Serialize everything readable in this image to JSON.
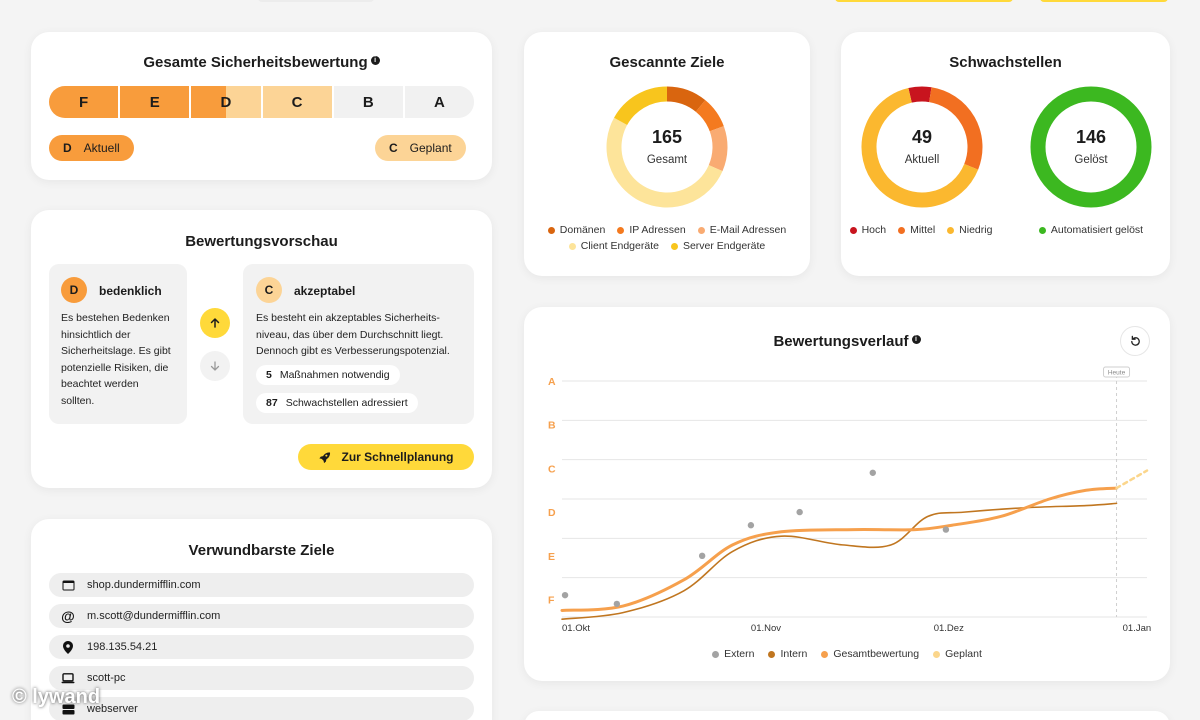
{
  "colors": {
    "grade_f": "#f89c3c",
    "grade_e": "#f89c3c",
    "grade_d_current": "#f89c3c",
    "grade_d_planned": "#fcd496",
    "grade_c": "#fcd496",
    "yellow": "#ffd93a",
    "green": "#3cb820",
    "red": "#c8141e",
    "orange": "#f26f21"
  },
  "rating": {
    "title": "Gesamte Sicherheitsbewertung",
    "grades": [
      "F",
      "E",
      "D",
      "C",
      "B",
      "A"
    ],
    "current": {
      "grade": "D",
      "label": "Aktuell"
    },
    "planned": {
      "grade": "C",
      "label": "Geplant"
    }
  },
  "preview": {
    "title": "Bewertungsvorschau",
    "current": {
      "grade": "D",
      "name": "bedenklich",
      "lines": [
        "Es bestehen Bedenken",
        "hinsichtlich der",
        "Sicherheitslage. Es gibt",
        "potenzielle Risiken, die",
        "beachtet werden",
        "sollten."
      ]
    },
    "target": {
      "grade": "C",
      "name": "akzeptabel",
      "lines": [
        "Es besteht ein akzeptables Sicherheits-",
        "niveau, das über dem Durchschnitt liegt.",
        "Dennoch gibt es Verbesserungspotenzial."
      ],
      "stats": [
        {
          "num": "5",
          "label": "Maßnahmen notwendig"
        },
        {
          "num": "87",
          "label": "Schwachstellen adressiert"
        }
      ]
    },
    "up_icon": "arrow-up-icon",
    "down_icon": "arrow-down-icon",
    "cta_label": "Zur Schnellplanung",
    "cta_icon": "rocket-icon"
  },
  "targets": {
    "title": "Verwundbarste Ziele",
    "items": [
      {
        "icon": "browser-window-icon",
        "glyph": "▬",
        "label": "shop.dundermifflin.com"
      },
      {
        "icon": "at-icon",
        "glyph": "@",
        "label": "m.scott@dundermifflin.com"
      },
      {
        "icon": "location-pin-icon",
        "glyph": "⬤",
        "label": "198.135.54.21"
      },
      {
        "icon": "laptop-icon",
        "glyph": "▭",
        "label": "scott-pc"
      },
      {
        "icon": "server-icon",
        "glyph": "▤",
        "label": "webserver"
      }
    ]
  },
  "scanned": {
    "title": "Gescannte Ziele",
    "total": "165",
    "total_label": "Gesamt",
    "segments": [
      {
        "name": "Domänen",
        "value": 18,
        "color": "#d9650f"
      },
      {
        "name": "IP Adressen",
        "value": 14,
        "color": "#f47a1f"
      },
      {
        "name": "E-Mail Adressen",
        "value": 20,
        "color": "#f9ab72"
      },
      {
        "name": "Client Endgeräte",
        "value": 85,
        "color": "#fde49a"
      },
      {
        "name": "Server Endgeräte",
        "value": 28,
        "color": "#f8c51d"
      }
    ]
  },
  "vulns": {
    "title": "Schwachstellen",
    "current_total": "49",
    "current_label": "Aktuell",
    "resolved_total": "146",
    "resolved_label": "Gelöst",
    "segments": [
      {
        "name": "Hoch",
        "value": 3,
        "color": "#c8141e"
      },
      {
        "name": "Mittel",
        "value": 14,
        "color": "#f26f21"
      },
      {
        "name": "Niedrig",
        "value": 32,
        "color": "#fbb82f"
      }
    ],
    "resolved_legend": {
      "name": "Automatisiert gelöst",
      "color": "#3cb820"
    }
  },
  "history": {
    "title": "Bewertungsverlauf",
    "reset_icon": "reset-icon",
    "today_label": "Heute",
    "chart_data": {
      "type": "line",
      "title": "Bewertungsverlauf",
      "y_categories": [
        "F",
        "E",
        "D",
        "C",
        "B",
        "A"
      ],
      "x_ticks": [
        "01.Okt",
        "01.Nov",
        "01.Dez",
        "01.Jan"
      ],
      "x_range": [
        0,
        96
      ],
      "y_range": [
        0.1,
        5.5
      ],
      "today_x": 91,
      "series": [
        {
          "name": "Extern",
          "kind": "scatter",
          "color": "#a3a3a3",
          "points": [
            [
              0.5,
              0.6
            ],
            [
              9,
              0.4
            ],
            [
              23,
              1.5
            ],
            [
              31,
              2.2
            ],
            [
              39,
              2.5
            ],
            [
              51,
              3.4
            ],
            [
              63,
              2.1
            ]
          ]
        },
        {
          "name": "Intern",
          "kind": "line",
          "color": "#c07620",
          "points": [
            [
              0,
              0.05
            ],
            [
              10,
              0.2
            ],
            [
              20,
              0.7
            ],
            [
              28,
              1.6
            ],
            [
              36,
              1.95
            ],
            [
              46,
              1.75
            ],
            [
              54,
              1.75
            ],
            [
              60,
              2.4
            ],
            [
              66,
              2.5
            ],
            [
              76,
              2.6
            ],
            [
              86,
              2.65
            ],
            [
              91,
              2.7
            ]
          ]
        },
        {
          "name": "Gesamtbewertung",
          "kind": "line",
          "color": "#f6a04d",
          "points": [
            [
              0,
              0.25
            ],
            [
              10,
              0.35
            ],
            [
              20,
              0.95
            ],
            [
              28,
              1.75
            ],
            [
              36,
              2.05
            ],
            [
              48,
              2.1
            ],
            [
              58,
              2.1
            ],
            [
              64,
              2.2
            ],
            [
              72,
              2.4
            ],
            [
              80,
              2.8
            ],
            [
              86,
              3.0
            ],
            [
              91,
              3.05
            ]
          ]
        },
        {
          "name": "Geplant",
          "kind": "dashed",
          "color": "#fbd68c",
          "points": [
            [
              91,
              3.05
            ],
            [
              96,
              3.45
            ]
          ]
        }
      ]
    }
  },
  "watermark": "© lywand"
}
